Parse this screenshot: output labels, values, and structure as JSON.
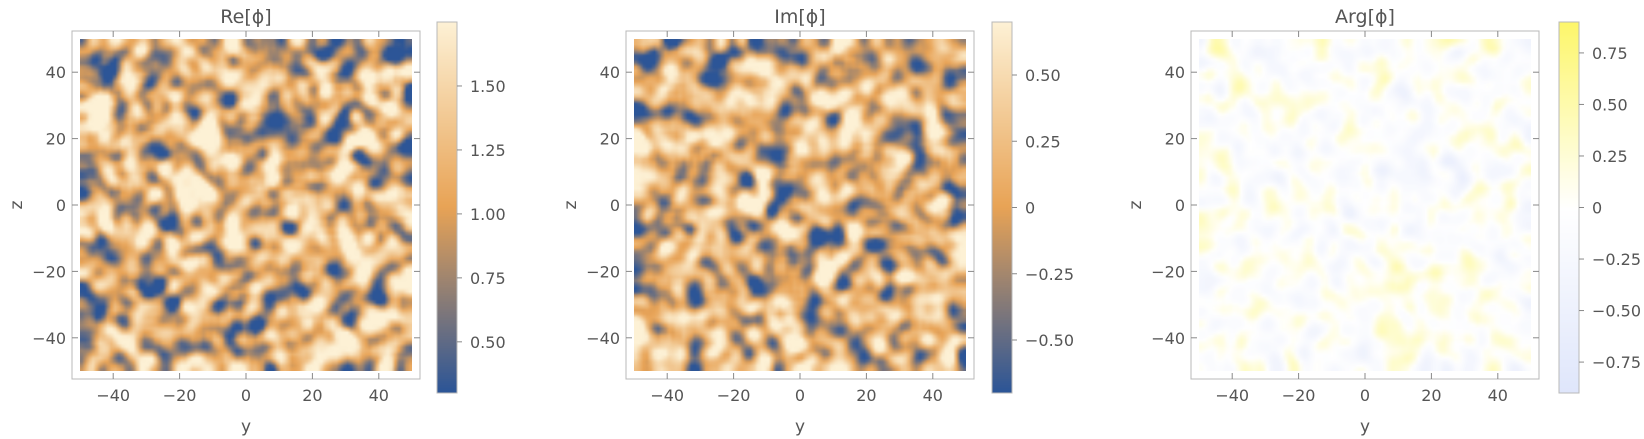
{
  "chart_data": [
    {
      "type": "heatmap",
      "title": "Re[ϕ]",
      "xlabel": "y",
      "ylabel": "z",
      "xlim": [
        -50,
        50
      ],
      "ylim": [
        -50,
        50
      ],
      "xticks": [
        -40,
        -20,
        0,
        20,
        40
      ],
      "yticks": [
        -40,
        -20,
        0,
        20,
        40
      ],
      "colorbar": {
        "range": [
          0.3,
          1.75
        ],
        "ticks": [
          0.5,
          0.75,
          1.0,
          1.25,
          1.5
        ],
        "tick_labels": [
          "0.50",
          "0.75",
          "1.00",
          "1.25",
          "1.50"
        ]
      },
      "colors": [
        "#2c5597",
        "#e8a356",
        "#fdf1d5"
      ],
      "grid": false
    },
    {
      "type": "heatmap",
      "title": "Im[ϕ]",
      "xlabel": "y",
      "ylabel": "z",
      "xlim": [
        -50,
        50
      ],
      "ylim": [
        -50,
        50
      ],
      "xticks": [
        -40,
        -20,
        0,
        20,
        40
      ],
      "yticks": [
        -40,
        -20,
        0,
        20,
        40
      ],
      "colorbar": {
        "range": [
          -0.7,
          0.7
        ],
        "ticks": [
          -0.5,
          -0.25,
          0,
          0.25,
          0.5
        ],
        "tick_labels": [
          "−0.50",
          "−0.25",
          "0",
          "0.25",
          "0.50"
        ]
      },
      "colors": [
        "#2c5597",
        "#e8a356",
        "#fdf1d5"
      ],
      "grid": false
    },
    {
      "type": "heatmap",
      "title": "Arg[ϕ]",
      "xlabel": "y",
      "ylabel": "z",
      "xlim": [
        -50,
        50
      ],
      "ylim": [
        -50,
        50
      ],
      "xticks": [
        -40,
        -20,
        0,
        20,
        40
      ],
      "yticks": [
        -40,
        -20,
        0,
        20,
        40
      ],
      "colorbar": {
        "range": [
          -0.9,
          0.9
        ],
        "ticks": [
          -0.75,
          -0.5,
          -0.25,
          0,
          0.25,
          0.5,
          0.75
        ],
        "tick_labels": [
          "−0.75",
          "−0.50",
          "−0.25",
          "0",
          "0.25",
          "0.50",
          "0.75"
        ]
      },
      "colors": [
        "#dfe6fb",
        "#ffffff",
        "#fdf66b"
      ],
      "grid": false
    }
  ]
}
